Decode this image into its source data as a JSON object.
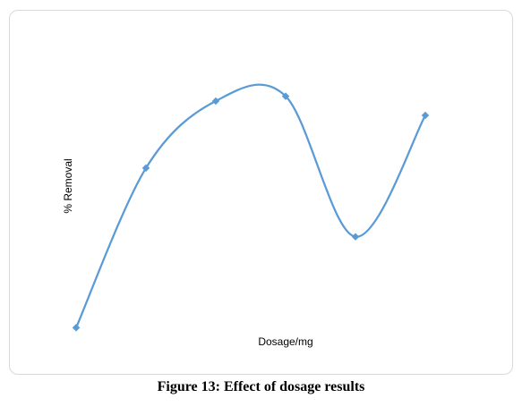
{
  "caption": "Figure 13: Effect of dosage results",
  "chart_data": {
    "type": "line",
    "smoothed": true,
    "x": [
      1,
      2,
      3,
      4,
      5,
      6
    ],
    "values": [
      1.0,
      51.0,
      72.0,
      73.5,
      29.5,
      67.5
    ],
    "xlabel": "Dosage/mg",
    "ylabel": "% Removal",
    "ylim": [
      0,
      100
    ],
    "grid": false,
    "axes_visible": false,
    "line_color": "#5b9bd5",
    "marker_color": "#5b9bd5",
    "marker": "diamond"
  }
}
